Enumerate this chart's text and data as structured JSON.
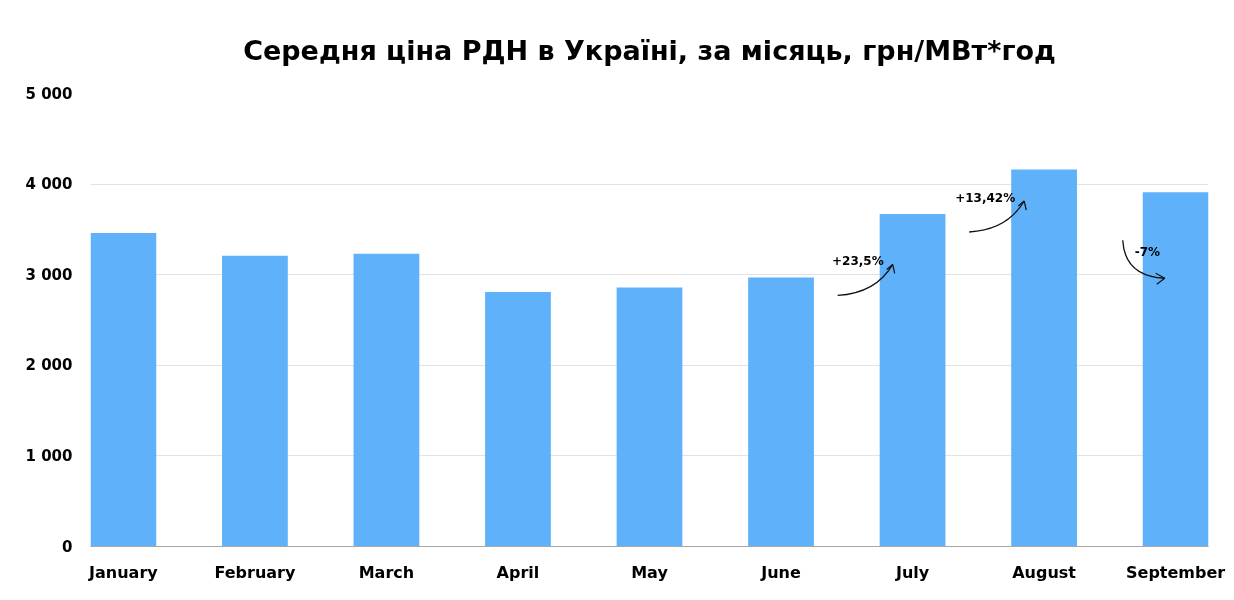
{
  "chart_data": {
    "type": "bar",
    "title": "Середня ціна РДН в Україні, за місяць, грн/МВт*год",
    "categories": [
      "January",
      "February",
      "March",
      "April",
      "May",
      "June",
      "July",
      "August",
      "September"
    ],
    "values": [
      3460,
      3210,
      3230,
      2810,
      2860,
      2970,
      3670,
      4160,
      3910
    ],
    "color": "#5fb2f9",
    "ylim": [
      0,
      5000
    ],
    "yticks": [
      0,
      {
        "value": 1000,
        "label": "1 000"
      },
      {
        "value": 2000,
        "label": "2 000"
      },
      {
        "value": 3000,
        "label": "3 000"
      },
      {
        "value": 4000,
        "label": "4 000"
      },
      {
        "value": 5000,
        "label": "5 000"
      }
    ],
    "grid": "y",
    "annotations": [
      "+23,5%",
      "+13,42%",
      "-7%"
    ]
  }
}
